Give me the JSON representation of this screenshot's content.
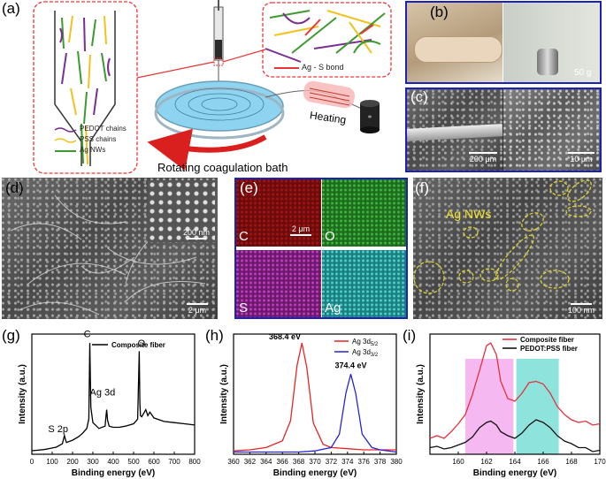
{
  "panels": {
    "a": {
      "label": "(a)",
      "legend": [
        "PEDOT chains",
        "PSS chains",
        "Ag NWs"
      ],
      "bond_label": "Ag - S bond",
      "heating": "Heating",
      "bath": "Rotating coagulation bath"
    },
    "b": {
      "label": "(b)",
      "weight": "50 g"
    },
    "c": {
      "label": "(c)",
      "scale_left": "200 μm",
      "scale_right": "10 μm"
    },
    "d": {
      "label": "(d)",
      "scale_inset": "200 nm",
      "scale_main": "2 μm"
    },
    "e": {
      "label": "(e)",
      "maps": [
        "C",
        "O",
        "S",
        "Ag"
      ],
      "scale": "2 μm"
    },
    "f": {
      "label": "(f)",
      "annotation": "Ag NWs",
      "scale": "100 nm"
    },
    "g": {
      "label": "(g)"
    },
    "h": {
      "label": "(h)"
    },
    "i": {
      "label": "(i)"
    }
  },
  "colors": {
    "frame_blue": "#1a22b8",
    "dash_red": "#e8373a",
    "ag_green": "#3c9a2e",
    "pss_yellow": "#f2c21d",
    "pedot_purple": "#7a2e8f",
    "arrow_red": "#d9201e"
  },
  "chart_data": [
    {
      "type": "line",
      "panel": "(g)",
      "xlabel": "Binding energy (eV)",
      "ylabel": "Intensity (a.u.)",
      "xlim": [
        0,
        800
      ],
      "xticks": [
        "0",
        "100",
        "200",
        "300",
        "400",
        "500",
        "600",
        "700",
        "800"
      ],
      "series": [
        {
          "name": "Composite fiber",
          "color": "#000000",
          "x": [
            0,
            30,
            60,
            90,
            120,
            150,
            160,
            165,
            170,
            200,
            230,
            250,
            270,
            280,
            285,
            290,
            300,
            330,
            360,
            365,
            368,
            372,
            380,
            400,
            430,
            460,
            500,
            520,
            528,
            531,
            534,
            540,
            560,
            570,
            580,
            600,
            650,
            700,
            750,
            800
          ],
          "y": [
            0.03,
            0.035,
            0.04,
            0.05,
            0.06,
            0.09,
            0.16,
            0.13,
            0.1,
            0.12,
            0.15,
            0.18,
            0.22,
            0.3,
            0.95,
            0.4,
            0.27,
            0.22,
            0.24,
            0.34,
            0.38,
            0.29,
            0.24,
            0.23,
            0.23,
            0.24,
            0.26,
            0.3,
            0.88,
            0.44,
            0.33,
            0.32,
            0.38,
            0.33,
            0.36,
            0.31,
            0.28,
            0.27,
            0.26,
            0.25
          ]
        }
      ],
      "annotations": [
        "S 2p",
        "Ag 3d",
        "C",
        "O"
      ]
    },
    {
      "type": "line",
      "panel": "(h)",
      "xlabel": "Binding energy (eV)",
      "ylabel": "Intensity (a.u.)",
      "xlim": [
        360,
        380
      ],
      "xticks": [
        "360",
        "362",
        "364",
        "366",
        "368",
        "370",
        "372",
        "374",
        "376",
        "378",
        "380"
      ],
      "series": [
        {
          "name": "Ag 3d5/2",
          "color": "#e32626",
          "x": [
            360,
            362,
            364,
            366,
            367,
            367.8,
            368.4,
            369,
            369.8,
            371,
            372,
            374,
            376,
            378,
            380
          ],
          "y": [
            0.03,
            0.04,
            0.06,
            0.12,
            0.3,
            0.8,
            1.0,
            0.78,
            0.28,
            0.09,
            0.06,
            0.05,
            0.04,
            0.04,
            0.04
          ]
        },
        {
          "name": "Ag 3d3/2",
          "color": "#2424d6",
          "x": [
            360,
            362,
            364,
            366,
            368,
            370,
            372,
            373,
            373.8,
            374.4,
            375,
            375.8,
            377,
            378,
            380
          ],
          "y": [
            0.02,
            0.02,
            0.02,
            0.02,
            0.02,
            0.03,
            0.06,
            0.18,
            0.55,
            0.72,
            0.55,
            0.18,
            0.06,
            0.04,
            0.02
          ]
        }
      ],
      "annotations": [
        "368.4 eV",
        "374.4 eV"
      ]
    },
    {
      "type": "line",
      "panel": "(i)",
      "xlabel": "Binding energy (eV)",
      "ylabel": "Intensity (a.u.)",
      "xlim": [
        158,
        170
      ],
      "xticks": [
        "160",
        "162",
        "164",
        "166",
        "168",
        "170"
      ],
      "highlights": [
        {
          "from": 160.5,
          "to": 163.9,
          "color": "#f6b8f0"
        },
        {
          "from": 164.1,
          "to": 167.1,
          "color": "#8ee3dc"
        }
      ],
      "series": [
        {
          "name": "Composite fiber",
          "color": "#e3323c",
          "x": [
            158,
            158.5,
            159,
            159.5,
            160,
            160.5,
            161,
            161.5,
            162,
            162.3,
            162.7,
            163,
            163.5,
            164,
            164.5,
            165,
            165.5,
            166,
            166.5,
            167,
            167.5,
            168,
            168.5,
            169,
            169.5,
            170
          ],
          "y": [
            0.12,
            0.14,
            0.12,
            0.17,
            0.23,
            0.3,
            0.45,
            0.63,
            0.82,
            0.84,
            0.75,
            0.55,
            0.42,
            0.4,
            0.46,
            0.54,
            0.55,
            0.53,
            0.46,
            0.36,
            0.3,
            0.26,
            0.24,
            0.25,
            0.22,
            0.23
          ]
        },
        {
          "name": "PEDOT:PSS fiber",
          "color": "#111111",
          "x": [
            158,
            158.5,
            159,
            159.5,
            160,
            160.5,
            161,
            161.5,
            162,
            162.3,
            162.7,
            163,
            163.5,
            164,
            164.5,
            165,
            165.5,
            166,
            166.5,
            167,
            167.5,
            168,
            168.5,
            169,
            169.5,
            170
          ],
          "y": [
            0.05,
            0.06,
            0.04,
            0.05,
            0.07,
            0.09,
            0.13,
            0.2,
            0.24,
            0.25,
            0.22,
            0.17,
            0.14,
            0.12,
            0.16,
            0.22,
            0.26,
            0.24,
            0.2,
            0.14,
            0.1,
            0.08,
            0.05,
            0.05,
            0.02,
            0.03
          ]
        }
      ]
    }
  ]
}
